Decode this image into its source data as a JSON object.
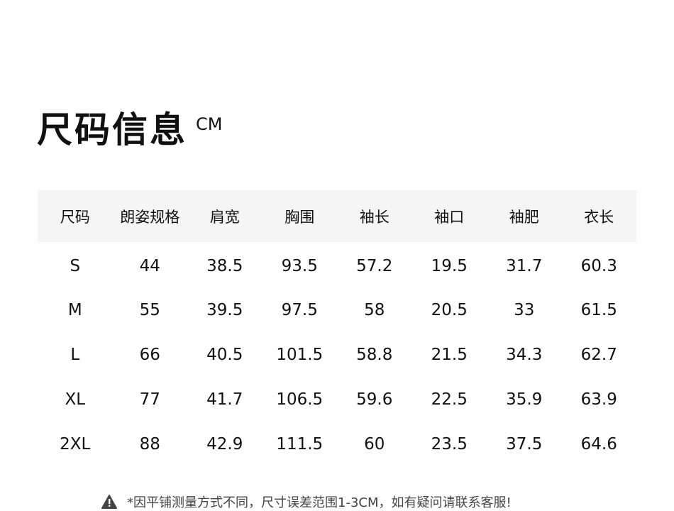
{
  "title": "尺码信息",
  "unit": "CM",
  "table": {
    "headers": [
      "尺码",
      "朗姿规格",
      "肩宽",
      "胸围",
      "袖长",
      "袖口",
      "袖肥",
      "衣长"
    ],
    "rows": [
      [
        "S",
        "44",
        "38.5",
        "93.5",
        "57.2",
        "19.5",
        "31.7",
        "60.3"
      ],
      [
        "M",
        "55",
        "39.5",
        "97.5",
        "58",
        "20.5",
        "33",
        "61.5"
      ],
      [
        "L",
        "66",
        "40.5",
        "101.5",
        "58.8",
        "21.5",
        "34.3",
        "62.7"
      ],
      [
        "XL",
        "77",
        "41.7",
        "106.5",
        "59.6",
        "22.5",
        "35.9",
        "63.9"
      ],
      [
        "2XL",
        "88",
        "42.9",
        "111.5",
        "60",
        "23.5",
        "37.5",
        "64.6"
      ]
    ]
  },
  "note": {
    "icon": "warning-icon",
    "text": "*因平铺测量方式不同，尺寸误差范围1-3CM，如有疑问请联系客服!"
  }
}
